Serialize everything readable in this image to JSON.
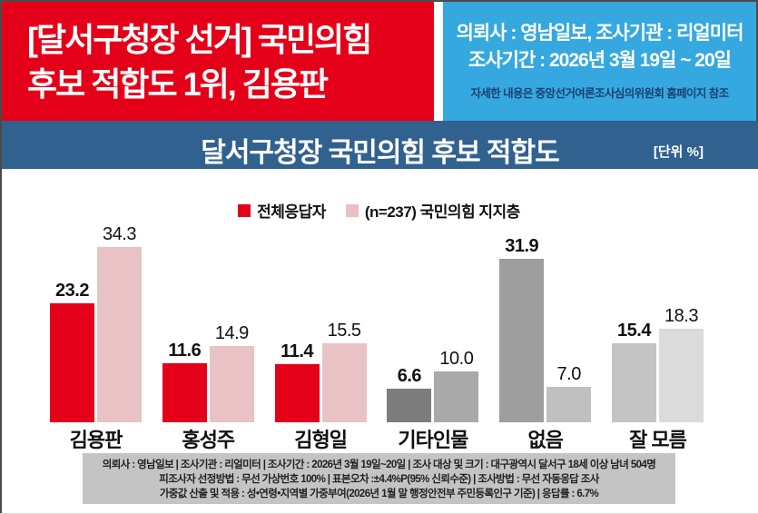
{
  "header": {
    "headline_line1": "[달서구청장 선거]  국민의힘",
    "headline_line2": "후보 적합도 1위, 김용판",
    "info_line1": "의뢰사 : 영남일보, 조사기관 : 리얼미터",
    "info_line2": "조사기간 : 2026년  3월 19일 ~ 20일",
    "note": "자세한 내용은 중앙선거여론조사심의위원회 홈페이지 참조"
  },
  "banner": {
    "title": "달서구청장 국민의힘 후보 적합도",
    "unit": "[단위 %]"
  },
  "chart_data": {
    "type": "bar",
    "title": "달서구청장 국민의힘 후보 적합도",
    "unit": "%",
    "categories": [
      "김용판",
      "홍성주",
      "김형일",
      "기타인물",
      "없음",
      "잘 모름"
    ],
    "series": [
      {
        "name": "전체응답자",
        "values": [
          23.2,
          11.6,
          11.4,
          6.6,
          31.9,
          15.4
        ]
      },
      {
        "name": "(n=237) 국민의힘 지지층",
        "values": [
          34.3,
          14.9,
          15.5,
          10.0,
          7.0,
          18.3
        ]
      }
    ],
    "legend": [
      {
        "label": "전체응답자",
        "color": "#e50019"
      },
      {
        "label": "(n=237) 국민의힘 지지층",
        "color": "#e9bfc3"
      }
    ],
    "group_colors": [
      [
        "#e50019",
        "#e9c2c6"
      ],
      [
        "#e50019",
        "#e9c2c6"
      ],
      [
        "#e50019",
        "#e9c2c6"
      ],
      [
        "#7d7d7d",
        "#a9a9a9"
      ],
      [
        "#9e9e9e",
        "#c0c0c0"
      ],
      [
        "#c4c4c4",
        "#dbdbdb"
      ]
    ],
    "ylim": [
      0,
      40
    ],
    "grid": false,
    "legend_position": "top"
  },
  "colors": {
    "headline_bg": "#e50019",
    "info_bg": "#35a8e0",
    "note_text": "#1c4170",
    "banner_bg": "#31618f",
    "footer_bg": "#c4c4c4"
  },
  "footer": {
    "line1": "의뢰사 : 영남일보 | 조사기관 : 리얼미터 | 조사기간 : 2026년 3월 19일~20일 | 조사 대상 및 크기 : 대구광역시 달서구 18세 이상 남녀 504명",
    "line2": "피조사자 선정방법 : 무선 가상번호 100% | 표본오차 :±4.4%P(95% 신뢰수준) | 조사방법 : 무선 자동응답 조사",
    "line3": "가중값 산출 및 적용 : 성•연령•지역별 가중부여(2026년 1월 말 행정안전부 주민등록인구 기준) | 응답률 : 6.7%"
  }
}
